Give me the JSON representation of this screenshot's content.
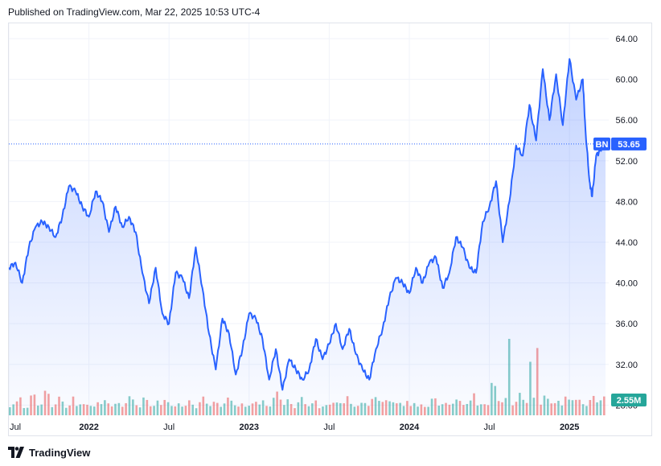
{
  "header": {
    "published_text": "Published on TradingView.com, Mar 22, 2025 10:53 UTC-4"
  },
  "footer": {
    "brand": "TradingView",
    "logo_icon": "tradingview-logo-icon"
  },
  "colors": {
    "line": "#2962ff",
    "area_top": "#2962ff",
    "grid": "#f0f3fa",
    "price_badge": "#2962ff",
    "volume_badge": "#26a69a",
    "volume_up": "#26a69a",
    "volume_down": "#ef5350",
    "dotted_line": "#2962ff"
  },
  "chart_data": {
    "type": "area",
    "symbol": "BN",
    "last_price": 53.65,
    "last_price_label": "53.65",
    "volume_label": "2.55M",
    "y_axis": {
      "ticks": [
        64,
        60,
        56,
        52,
        48,
        44,
        40,
        36,
        32,
        28
      ],
      "tick_labels": [
        "64.00",
        "60.00",
        "56.00",
        "52.00",
        "48.00",
        "44.00",
        "40.00",
        "36.00",
        "32.00",
        "28.00"
      ],
      "range": [
        27,
        65.5
      ]
    },
    "x_axis": {
      "labels": [
        {
          "text": "Jul",
          "t": 0
        },
        {
          "text": "2022",
          "t": 6
        },
        {
          "text": "Jul",
          "t": 12
        },
        {
          "text": "2023",
          "t": 18
        },
        {
          "text": "Jul",
          "t": 24
        },
        {
          "text": "2024",
          "t": 30
        },
        {
          "text": "Jul",
          "t": 36
        },
        {
          "text": "2025",
          "t": 42
        }
      ],
      "range": [
        0,
        44.7
      ]
    },
    "series": [
      {
        "t": [
          0,
          0.5,
          1,
          1.5,
          2,
          2.5,
          3,
          3.5,
          4,
          4.5,
          5,
          5.5,
          6,
          6.5,
          7,
          7.5,
          8,
          8.5,
          9,
          9.5,
          10,
          10.5,
          11,
          11.5,
          12,
          12.5,
          13,
          13.5,
          14,
          14.5,
          15,
          15.5,
          16,
          16.5,
          17,
          17.5,
          18,
          18.5,
          19,
          19.5,
          20,
          20.5,
          21,
          21.5,
          22,
          22.5,
          23,
          23.5,
          24,
          24.5,
          25,
          25.5,
          26,
          26.5,
          27,
          27.5,
          28,
          28.5,
          29,
          29.5,
          30,
          30.5,
          31,
          31.5,
          32,
          32.5,
          33,
          33.5,
          34,
          34.5,
          35,
          35.5,
          36,
          36.5,
          37,
          37.5,
          38,
          38.5,
          39,
          39.5,
          40,
          40.5,
          41,
          41.5,
          42,
          42.5,
          43,
          43.2,
          43.5,
          43.7,
          44,
          44.3,
          44.7
        ],
        "values": [
          41.5,
          42.0,
          40.0,
          43.5,
          45.5,
          46.0,
          45.5,
          44.5,
          46.5,
          49.5,
          49.0,
          47.5,
          46.5,
          49.0,
          48.0,
          45.0,
          47.5,
          45.5,
          46.5,
          45.0,
          41.0,
          38.0,
          41.5,
          37.0,
          36.0,
          41.0,
          40.5,
          38.5,
          43.5,
          39.5,
          35.0,
          31.5,
          36.5,
          35.0,
          31.0,
          33.5,
          37.0,
          36.5,
          34.5,
          30.5,
          33.5,
          29.5,
          32.5,
          31.5,
          30.5,
          31.5,
          34.5,
          32.5,
          34.0,
          36.0,
          33.5,
          35.5,
          33.0,
          31.5,
          30.5,
          33.5,
          35.5,
          38.5,
          40.5,
          40.0,
          39.0,
          41.5,
          40.0,
          42.0,
          42.5,
          39.5,
          41.0,
          44.5,
          43.5,
          41.5,
          41.0,
          46.0,
          47.5,
          50.0,
          44.0,
          48.0,
          53.5,
          52.5,
          57.5,
          54.0,
          61.0,
          56.0,
          60.5,
          55.5,
          62.0,
          58.0,
          60.0,
          55.0,
          50.0,
          48.5,
          52.5,
          53.0,
          53.65
        ]
      }
    ],
    "volume": {
      "note_values_relative": [
        0.35,
        0.5,
        0.3,
        0.55,
        0.4,
        0.6,
        0.35,
        0.45,
        0.3,
        0.5,
        0.4,
        0.35,
        0.3,
        0.45,
        0.4,
        0.35,
        0.3,
        0.5,
        0.4,
        0.3,
        0.45,
        0.35,
        0.4,
        0.5,
        0.3,
        0.35,
        0.4,
        0.3,
        0.45,
        0.35,
        0.4,
        0.3,
        0.5,
        0.4,
        0.35,
        0.3,
        0.45,
        0.4,
        0.35,
        0.5,
        0.6,
        0.4,
        0.3,
        0.45,
        0.35,
        0.4,
        0.3,
        0.35,
        0.4,
        0.45,
        0.5,
        0.35,
        0.3,
        0.4,
        0.45,
        0.55,
        0.4,
        0.5,
        0.35,
        0.45,
        0.4,
        0.3,
        0.35,
        0.45,
        0.4,
        0.3,
        0.5,
        0.35,
        0.45,
        0.6,
        0.4,
        0.35,
        1.0,
        0.5,
        0.45,
        0.4,
        0.55,
        0.5,
        0.45,
        0.4,
        0.5,
        0.45,
        0.4,
        0.6,
        0.5,
        0.45,
        0.4,
        0.55,
        0.5,
        0.45
      ]
    },
    "grid": true,
    "legend": "none"
  }
}
